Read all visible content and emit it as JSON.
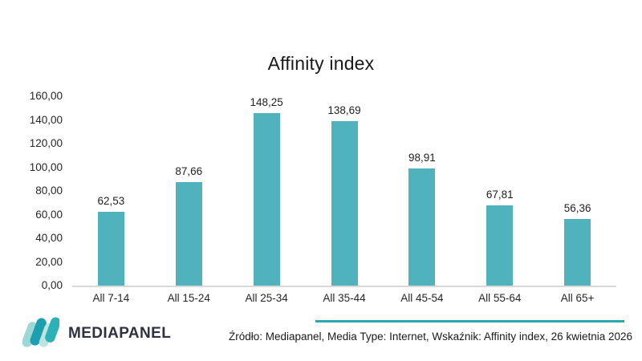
{
  "chart_data": {
    "type": "bar",
    "title": "Affinity index",
    "categories": [
      "All 7-14",
      "All 15-24",
      "All 25-34",
      "All 35-44",
      "All 45-54",
      "All 55-64",
      "All 65+"
    ],
    "values": [
      62.53,
      87.66,
      148.25,
      138.69,
      98.91,
      67.81,
      56.36
    ],
    "value_labels": [
      "62,53",
      "87,66",
      "148,25",
      "138,69",
      "98,91",
      "67,81",
      "56,36"
    ],
    "y_tick_labels": [
      "0,00",
      "20,00",
      "40,00",
      "60,00",
      "80,00",
      "100,00",
      "120,00",
      "140,00",
      "160,00"
    ],
    "ylim": [
      0,
      160
    ],
    "xlabel": "",
    "ylabel": "",
    "grid": false,
    "legend": false,
    "bar_color": "#4FB2BD",
    "axis_line_color": "#D9D9D9",
    "text_color": "#262626"
  },
  "footer": {
    "logo_text": "MEDIAPANEL",
    "logo_icon": "mediapanel-m-mark",
    "logo_icon_colors": [
      "#9ED8D6",
      "#1E9FAE",
      "#BDE4E1",
      "#2CB1B7"
    ],
    "logo_text_color": "#2D3142",
    "accent_line_color": "#2BA7B0",
    "source_text": "Źródło: Mediapanel, Media Type: Internet, Wskaźnik: Affinity index, 26 kwietnia 2026"
  }
}
